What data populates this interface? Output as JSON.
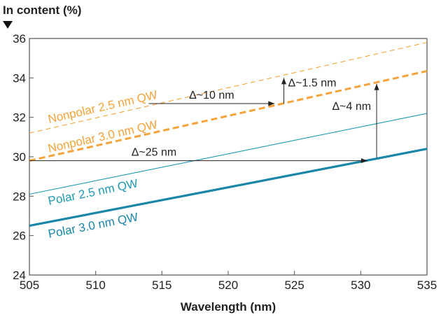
{
  "chart_data": {
    "type": "line",
    "title": "",
    "xlabel": "Wavelength (nm)",
    "ylabel": "In content (%)",
    "xlim": [
      505,
      535
    ],
    "ylim": [
      24,
      36
    ],
    "xticks": [
      505,
      510,
      515,
      520,
      525,
      530,
      535
    ],
    "yticks": [
      24,
      26,
      28,
      30,
      32,
      34,
      36
    ],
    "grid": false,
    "series": [
      {
        "name": "Nonpolar 2.5 nm QW",
        "x": [
          505,
          535
        ],
        "y": [
          31.2,
          35.8
        ],
        "color": "#f5a33b",
        "style": "dashed-thin"
      },
      {
        "name": "Nonpolar 3.0 nm QW",
        "x": [
          505,
          535
        ],
        "y": [
          29.8,
          34.35
        ],
        "color": "#f5a33b",
        "style": "dashed-thick"
      },
      {
        "name": "Polar 2.5 nm QW",
        "x": [
          505,
          535
        ],
        "y": [
          28.1,
          32.2
        ],
        "color": "#1e9ab5",
        "style": "solid-thin"
      },
      {
        "name": "Polar 3.0 nm QW",
        "x": [
          505,
          535
        ],
        "y": [
          26.5,
          30.4
        ],
        "color": "#1a86a8",
        "style": "solid-thick"
      }
    ],
    "annotations": [
      {
        "label": "Δ~10 nm",
        "direction": "horizontal",
        "from": [
          514,
          32.7
        ],
        "to": [
          523.5,
          32.7
        ]
      },
      {
        "label": "Δ~1.5 nm",
        "direction": "vertical",
        "from": [
          524.2,
          32.7
        ],
        "to": [
          524.2,
          34.0
        ]
      },
      {
        "label": "Δ~25 nm",
        "direction": "horizontal",
        "from": [
          505,
          29.8
        ],
        "to": [
          530.5,
          29.8
        ]
      },
      {
        "label": "Δ~4 nm",
        "direction": "vertical",
        "from": [
          531.2,
          29.95
        ],
        "to": [
          531.2,
          33.7
        ]
      }
    ]
  }
}
